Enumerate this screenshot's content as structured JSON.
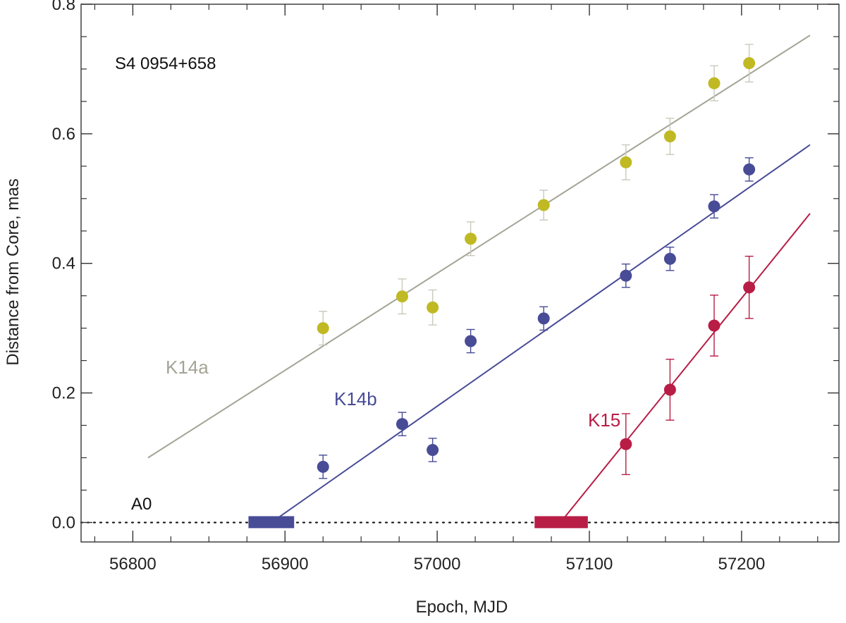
{
  "chart_data": {
    "type": "scatter",
    "title": "S4 0954+658",
    "xlabel": "Epoch, MJD",
    "ylabel": "Distance from Core, mas",
    "xlim": [
      56766,
      57264
    ],
    "ylim": [
      -0.03,
      0.8
    ],
    "xticks": [
      56800,
      56900,
      57000,
      57100,
      57200
    ],
    "xtick_labels": [
      "56800",
      "56900",
      "57000",
      "57100",
      "57200"
    ],
    "yticks": [
      0.0,
      0.2,
      0.4,
      0.6,
      0.8
    ],
    "ytick_labels": [
      "0.0",
      "0.2",
      "0.4",
      "0.6",
      "0.8"
    ],
    "x_minor_step": 25,
    "y_minor_step": 0.05,
    "core_label": "A0",
    "core_level": 0.0,
    "series": [
      {
        "name": "K14a",
        "color": "#c0b923",
        "fit_color": "#a3a396",
        "fit": {
          "x": [
            56810,
            57245
          ],
          "y": [
            0.1,
            0.752
          ]
        },
        "points": [
          {
            "x": 56925,
            "y": 0.3,
            "err": 0.026
          },
          {
            "x": 56977,
            "y": 0.349,
            "err": 0.027
          },
          {
            "x": 56997,
            "y": 0.332,
            "err": 0.027
          },
          {
            "x": 57022,
            "y": 0.438,
            "err": 0.026
          },
          {
            "x": 57070,
            "y": 0.49,
            "err": 0.023
          },
          {
            "x": 57124,
            "y": 0.556,
            "err": 0.027
          },
          {
            "x": 57153,
            "y": 0.596,
            "err": 0.028
          },
          {
            "x": 57182,
            "y": 0.678,
            "err": 0.027
          },
          {
            "x": 57205,
            "y": 0.709,
            "err": 0.029
          }
        ],
        "ejection": null
      },
      {
        "name": "K14b",
        "color": "#484b96",
        "fit_color": "#484b96",
        "fit": {
          "x": [
            56891,
            57245
          ],
          "y": [
            0.0,
            0.583
          ]
        },
        "points": [
          {
            "x": 56925,
            "y": 0.086,
            "err": 0.018
          },
          {
            "x": 56977,
            "y": 0.152,
            "err": 0.018
          },
          {
            "x": 56997,
            "y": 0.112,
            "err": 0.018
          },
          {
            "x": 57022,
            "y": 0.28,
            "err": 0.018
          },
          {
            "x": 57070,
            "y": 0.315,
            "err": 0.018
          },
          {
            "x": 57124,
            "y": 0.381,
            "err": 0.018
          },
          {
            "x": 57153,
            "y": 0.407,
            "err": 0.018
          },
          {
            "x": 57182,
            "y": 0.488,
            "err": 0.018
          },
          {
            "x": 57205,
            "y": 0.545,
            "err": 0.018
          }
        ],
        "ejection": {
          "start": 56876,
          "end": 56906
        }
      },
      {
        "name": "K15",
        "color": "#b81d46",
        "fit_color": "#b81d46",
        "fit": {
          "x": [
            57081,
            57245
          ],
          "y": [
            0.0,
            0.477
          ]
        },
        "points": [
          {
            "x": 57124,
            "y": 0.121,
            "err": 0.047
          },
          {
            "x": 57153,
            "y": 0.205,
            "err": 0.047
          },
          {
            "x": 57182,
            "y": 0.304,
            "err": 0.047
          },
          {
            "x": 57205,
            "y": 0.363,
            "err": 0.048
          }
        ],
        "ejection": {
          "start": 57064,
          "end": 57099
        }
      }
    ]
  }
}
